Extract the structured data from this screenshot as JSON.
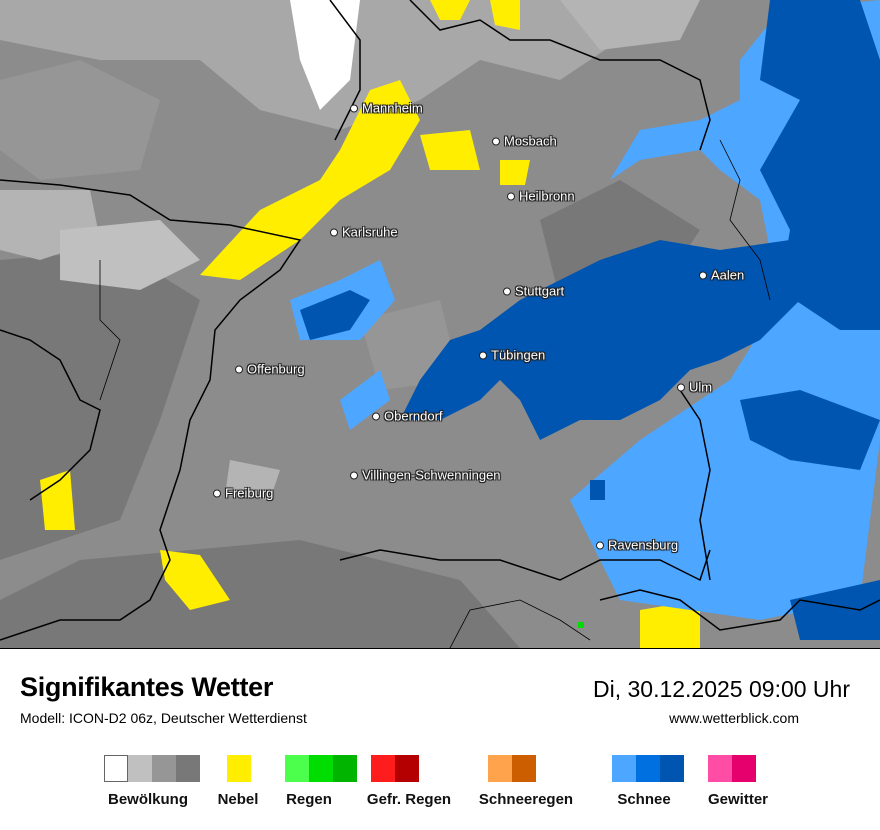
{
  "map": {
    "cities": [
      {
        "name": "Mannheim"
      },
      {
        "name": "Mosbach"
      },
      {
        "name": "Heilbronn"
      },
      {
        "name": "Karlsruhe"
      },
      {
        "name": "Stuttgart"
      },
      {
        "name": "Aalen"
      },
      {
        "name": "Tübingen"
      },
      {
        "name": "Offenburg"
      },
      {
        "name": "Ulm"
      },
      {
        "name": "Oberndorf"
      },
      {
        "name": "Villingen-Schwenningen"
      },
      {
        "name": "Freiburg"
      },
      {
        "name": "Ravensburg"
      }
    ]
  },
  "header": {
    "title": "Signifikantes Wetter",
    "subtitle": "Modell: ICON-D2 06z, Deutscher Wetterdienst",
    "datetime": "Di, 30.12.2025 09:00 Uhr",
    "website": "www.wetterblick.com"
  },
  "legend": [
    {
      "label": "Bewölkung",
      "colors": [
        "#ffffff",
        "#c0c0c0",
        "#969696",
        "#787878"
      ]
    },
    {
      "label": "Nebel",
      "colors": [
        "#ffee00"
      ]
    },
    {
      "label": "Regen",
      "colors": [
        "#4cff4c",
        "#00dd00",
        "#00b400"
      ]
    },
    {
      "label": "Gefr. Regen",
      "colors": [
        "#ff1c1c",
        "#b40000"
      ]
    },
    {
      "label": "Schneeregen",
      "colors": [
        "#ffa44c",
        "#cc5e00"
      ]
    },
    {
      "label": "Schnee",
      "colors": [
        "#4da6ff",
        "#0070e0",
        "#0055b0"
      ]
    },
    {
      "label": "Gewitter",
      "colors": [
        "#ff4ca4",
        "#e6006e"
      ]
    }
  ]
}
